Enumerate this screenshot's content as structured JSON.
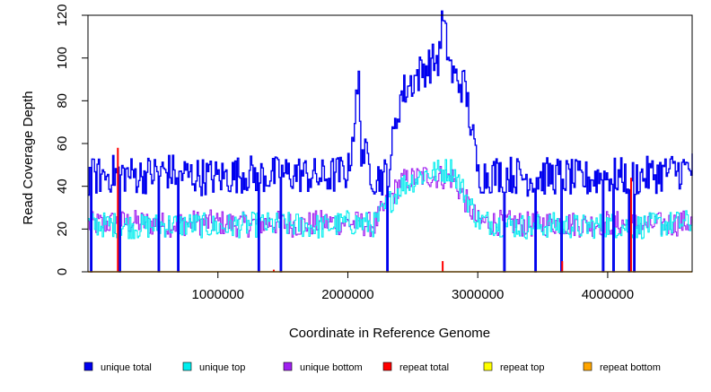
{
  "chart_data": {
    "type": "line",
    "title": "",
    "xlabel": "Coordinate in Reference Genome",
    "ylabel": "Read Coverage Depth",
    "xlim": [
      0,
      4650000
    ],
    "ylim": [
      0,
      120
    ],
    "x_ticks": [
      1000000,
      2000000,
      3000000,
      4000000
    ],
    "x_tick_labels": [
      "1000000",
      "2000000",
      "3000000",
      "4000000"
    ],
    "y_ticks": [
      0,
      20,
      40,
      60,
      80,
      100,
      120
    ],
    "y_tick_labels": [
      "0",
      "20",
      "40",
      "60",
      "80",
      "100",
      "120"
    ],
    "grid": false,
    "legend_position": "bottom",
    "coverage_window_bp": 10000,
    "zero_coverage_regions": [
      20000,
      240000,
      540000,
      690000,
      1310000,
      1480000,
      2300000,
      3200000,
      3440000,
      3640000,
      3960000,
      4040000,
      4160000,
      4200000
    ],
    "high_coverage_region": {
      "start": 2090000,
      "end": 2100000
    },
    "series": [
      {
        "name": "unique total",
        "color": "#0000ee",
        "x": [
          0,
          200000,
          400000,
          600000,
          800000,
          1000000,
          1200000,
          1400000,
          1600000,
          1800000,
          2000000,
          2080000,
          2100000,
          2200000,
          2300000,
          2400000,
          2500000,
          2600000,
          2700000,
          2720000,
          2800000,
          2900000,
          3000000,
          3200000,
          3400000,
          3600000,
          3800000,
          4000000,
          4200000,
          4400000,
          4600000
        ],
        "values": [
          44,
          46,
          45,
          47,
          45,
          44,
          46,
          45,
          46,
          44,
          47,
          88,
          58,
          44,
          45,
          82,
          90,
          96,
          100,
          118,
          92,
          86,
          45,
          46,
          44,
          45,
          43,
          45,
          44,
          46,
          48
        ]
      },
      {
        "name": "unique top",
        "color": "#00eeee",
        "x": [
          0,
          200000,
          400000,
          600000,
          800000,
          1000000,
          1200000,
          1400000,
          1600000,
          1800000,
          2000000,
          2200000,
          2400000,
          2600000,
          2800000,
          3000000,
          3200000,
          3400000,
          3600000,
          3800000,
          4000000,
          4200000,
          4400000,
          4600000
        ],
        "values": [
          22,
          22,
          21,
          22,
          22,
          21,
          22,
          22,
          22,
          21,
          23,
          22,
          40,
          46,
          48,
          24,
          22,
          21,
          22,
          21,
          22,
          21,
          22,
          23
        ]
      },
      {
        "name": "unique bottom",
        "color": "#a020f0",
        "x": [
          0,
          200000,
          400000,
          600000,
          800000,
          1000000,
          1200000,
          1400000,
          1600000,
          1800000,
          2000000,
          2200000,
          2400000,
          2600000,
          2800000,
          3000000,
          3200000,
          3400000,
          3600000,
          3800000,
          4000000,
          4200000,
          4400000,
          4600000
        ],
        "values": [
          22,
          23,
          23,
          22,
          23,
          23,
          22,
          23,
          22,
          23,
          23,
          22,
          42,
          45,
          44,
          23,
          23,
          22,
          23,
          22,
          23,
          22,
          22,
          23
        ]
      },
      {
        "name": "repeat total",
        "color": "#ff0000",
        "x": [
          230000,
          1430000,
          2730000,
          3650000,
          4180000
        ],
        "values": [
          58,
          1,
          5,
          5,
          44
        ]
      },
      {
        "name": "repeat top",
        "color": "#ffff00",
        "x": [],
        "values": []
      },
      {
        "name": "repeat bottom",
        "color": "#ffa500",
        "x": [
          0,
          4650000
        ],
        "values": [
          0,
          0
        ]
      }
    ]
  }
}
